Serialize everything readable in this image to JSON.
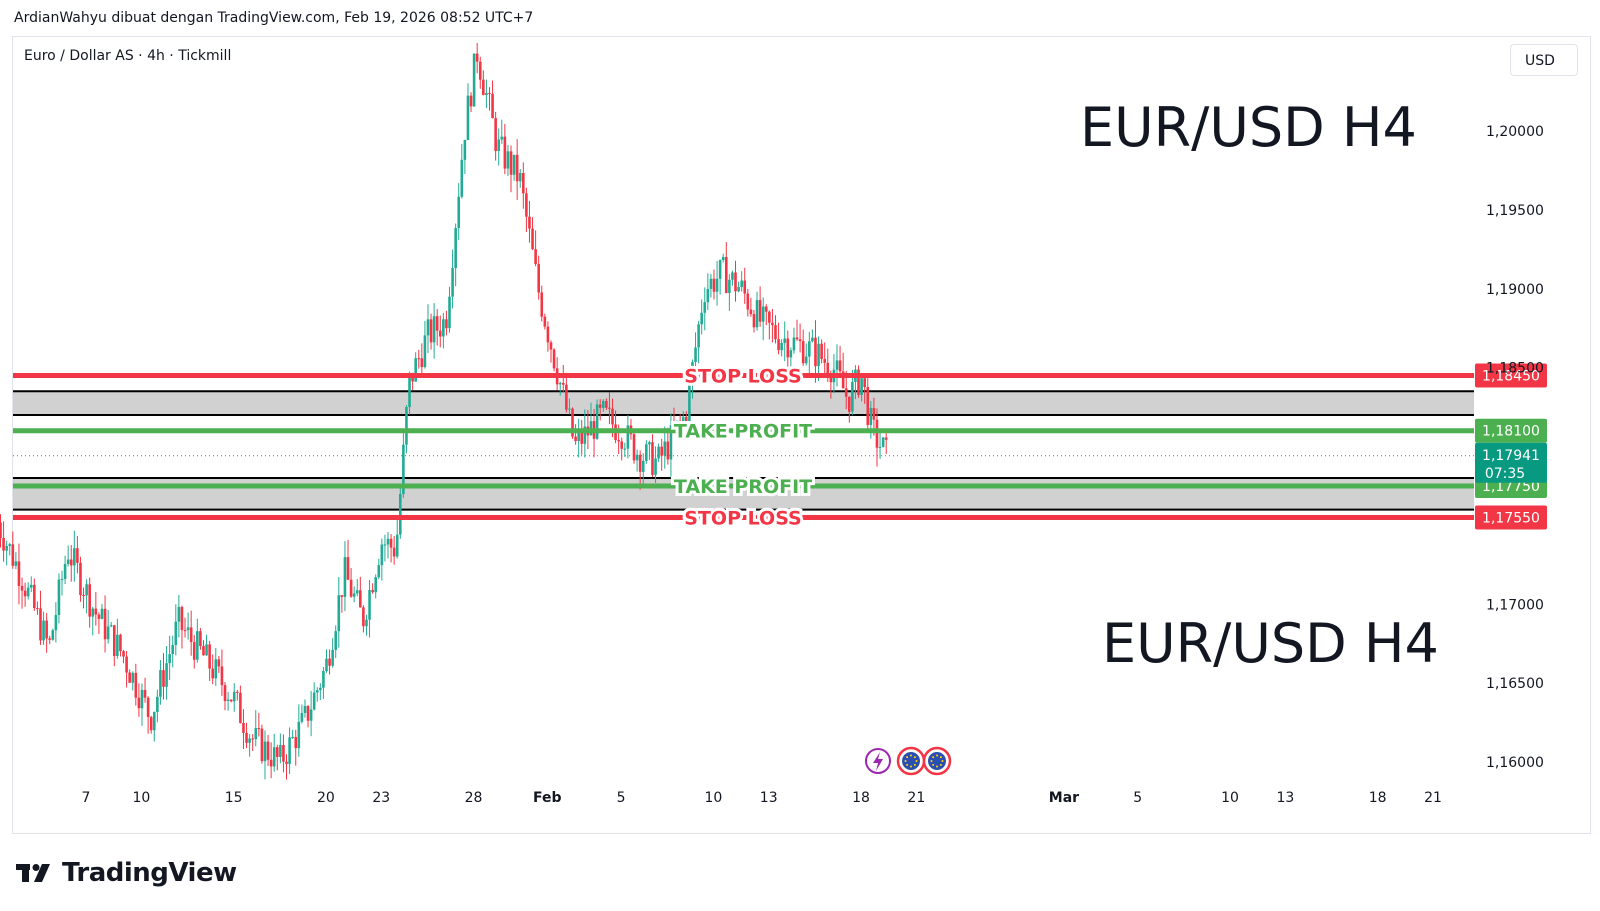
{
  "header": {
    "author_line": "ArdianWahyu dibuat dengan TradingView.com, Feb 19, 2026 08:52 UTC+7"
  },
  "chart_header": {
    "symbol_line": "Euro / Dollar AS · 4h · Tickmill",
    "currency": "USD"
  },
  "annotations": {
    "title_top": "EUR/USD H4",
    "title_bottom": "EUR/USD H4"
  },
  "brand": {
    "name": "TradingView",
    "icon": "tradingview-logo-icon"
  },
  "event_icons": [
    "lightning-icon",
    "eu-flag-icon",
    "eu-flag-icon"
  ],
  "colors": {
    "up": "#22ab94",
    "down": "#f23645",
    "stop_loss": "#f23645",
    "take_profit": "#4caf50",
    "zone_fill": "#d1d1d1",
    "current_price": "#089981"
  },
  "chart_data": {
    "type": "candlestick",
    "title": "EUR/USD H4",
    "ylim": [
      1.1585,
      1.2115
    ],
    "y_ticks": [
      {
        "value": 1.2,
        "label": "1,20000"
      },
      {
        "value": 1.195,
        "label": "1,19500"
      },
      {
        "value": 1.19,
        "label": "1,19000"
      },
      {
        "value": 1.185,
        "label": "1,18500"
      },
      {
        "value": 1.17,
        "label": "1,17000"
      },
      {
        "value": 1.165,
        "label": "1,16500"
      },
      {
        "value": 1.16,
        "label": "1,16000"
      }
    ],
    "x_ticks": [
      {
        "label": "7",
        "day": 7
      },
      {
        "label": "10",
        "day": 10
      },
      {
        "label": "15",
        "day": 15
      },
      {
        "label": "20",
        "day": 20
      },
      {
        "label": "23",
        "day": 23
      },
      {
        "label": "28",
        "day": 28
      },
      {
        "label": "Feb",
        "day": 32
      },
      {
        "label": "5",
        "day": 36
      },
      {
        "label": "10",
        "day": 41
      },
      {
        "label": "13",
        "day": 44
      },
      {
        "label": "18",
        "day": 49
      },
      {
        "label": "21",
        "day": 52
      },
      {
        "label": "Mar",
        "day": 60
      },
      {
        "label": "5",
        "day": 64
      },
      {
        "label": "10",
        "day": 69
      },
      {
        "label": "13",
        "day": 72
      },
      {
        "label": "18",
        "day": 77
      },
      {
        "label": "21",
        "day": 80
      }
    ],
    "levels": [
      {
        "label": "STOP LOSS",
        "price": 1.1845,
        "price_label": "1,18450",
        "kind": "stop_loss"
      },
      {
        "label": "TAKE PROFIT",
        "price": 1.181,
        "price_label": "1,18100",
        "kind": "take_profit"
      },
      {
        "label": "TAKE PROFIT",
        "price": 1.1775,
        "price_label": "1,17750",
        "kind": "take_profit"
      },
      {
        "label": "STOP LOSS",
        "price": 1.1755,
        "price_label": "1,17550",
        "kind": "stop_loss"
      }
    ],
    "zones": [
      {
        "top": 1.1835,
        "bottom": 1.182
      },
      {
        "top": 1.178,
        "bottom": 1.176
      }
    ],
    "current_price": {
      "value": 1.17941,
      "label": "1,17941",
      "countdown": "07:35"
    },
    "path": [
      {
        "day": 2.2,
        "price": 1.1752
      },
      {
        "day": 3.5,
        "price": 1.1718
      },
      {
        "day": 5,
        "price": 1.1672
      },
      {
        "day": 6,
        "price": 1.1735
      },
      {
        "day": 7.5,
        "price": 1.1695
      },
      {
        "day": 9,
        "price": 1.1668
      },
      {
        "day": 10.5,
        "price": 1.1628
      },
      {
        "day": 12,
        "price": 1.1688
      },
      {
        "day": 13.5,
        "price": 1.1665
      },
      {
        "day": 15,
        "price": 1.164
      },
      {
        "day": 16,
        "price": 1.1615
      },
      {
        "day": 17.5,
        "price": 1.16
      },
      {
        "day": 18.8,
        "price": 1.1625
      },
      {
        "day": 20,
        "price": 1.166
      },
      {
        "day": 21,
        "price": 1.172
      },
      {
        "day": 22,
        "price": 1.169
      },
      {
        "day": 23,
        "price": 1.174
      },
      {
        "day": 23.8,
        "price": 1.1735
      },
      {
        "day": 24.5,
        "price": 1.184
      },
      {
        "day": 25.5,
        "price": 1.187
      },
      {
        "day": 26.5,
        "price": 1.188
      },
      {
        "day": 27.5,
        "price": 1.2
      },
      {
        "day": 28.2,
        "price": 1.205
      },
      {
        "day": 29.3,
        "price": 1.199
      },
      {
        "day": 30.5,
        "price": 1.197
      },
      {
        "day": 31.5,
        "price": 1.19
      },
      {
        "day": 32.5,
        "price": 1.185
      },
      {
        "day": 33.5,
        "price": 1.18
      },
      {
        "day": 35,
        "price": 1.182
      },
      {
        "day": 36,
        "price": 1.181
      },
      {
        "day": 37,
        "price": 1.1795
      },
      {
        "day": 38,
        "price": 1.179
      },
      {
        "day": 39.5,
        "price": 1.182
      },
      {
        "day": 40.5,
        "price": 1.19
      },
      {
        "day": 41.5,
        "price": 1.191
      },
      {
        "day": 42.5,
        "price": 1.19
      },
      {
        "day": 43.5,
        "price": 1.188
      },
      {
        "day": 44.5,
        "price": 1.187
      },
      {
        "day": 45.5,
        "price": 1.1865
      },
      {
        "day": 46.5,
        "price": 1.186
      },
      {
        "day": 47.5,
        "price": 1.185
      },
      {
        "day": 48.3,
        "price": 1.183
      },
      {
        "day": 49,
        "price": 1.1845
      },
      {
        "day": 49.6,
        "price": 1.181
      },
      {
        "day": 50.4,
        "price": 1.1794
      }
    ]
  }
}
